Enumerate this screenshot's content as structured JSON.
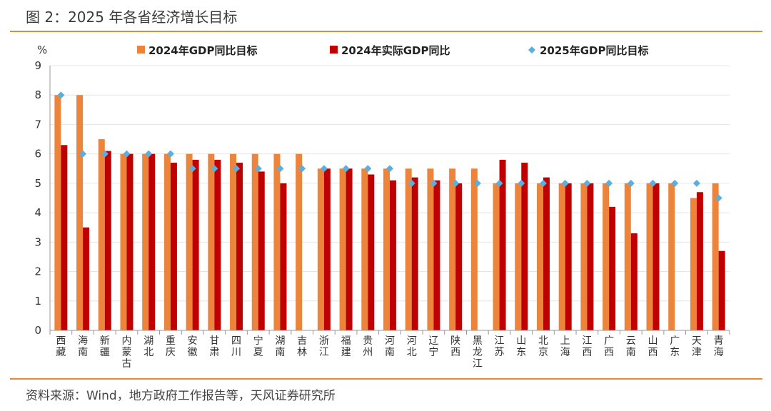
{
  "figure_title": "图 2：2025 年各省经济增长目标",
  "source_note": "资料来源：Wind，地方政府工作报告等，天风证券研究所",
  "chart_data": {
    "type": "bar",
    "title": "",
    "xlabel": "",
    "ylabel": "%",
    "ylim": [
      0,
      9
    ],
    "yticks": [
      "0",
      "1",
      "2",
      "3",
      "4",
      "5",
      "6",
      "7",
      "8",
      "9"
    ],
    "grid": true,
    "legend_position": "top",
    "categories": [
      "西藏",
      "海南",
      "新疆",
      "内蒙古",
      "湖北",
      "重庆",
      "安徽",
      "甘肃",
      "四川",
      "宁夏",
      "湖南",
      "吉林",
      "浙江",
      "福建",
      "贵州",
      "河南",
      "河北",
      "辽宁",
      "陕西",
      "黑龙江",
      "江苏",
      "山东",
      "北京",
      "上海",
      "江西",
      "广西",
      "云南",
      "山西",
      "广东",
      "天津",
      "青海"
    ],
    "series": [
      {
        "name": "2024年GDP同比目标",
        "kind": "bar",
        "color": "#ed843c",
        "values": [
          8,
          8,
          6.5,
          6,
          6,
          6,
          6,
          6,
          6,
          6,
          6,
          6,
          5.5,
          5.5,
          5.5,
          5.5,
          5.5,
          5.5,
          5.5,
          5.5,
          5,
          5,
          5,
          5,
          5,
          5,
          5,
          5,
          5,
          4.5,
          5
        ]
      },
      {
        "name": "2024年实际GDP同比",
        "kind": "bar",
        "color": "#c00000",
        "values": [
          6.3,
          3.5,
          6.1,
          6,
          6,
          5.7,
          5.8,
          5.8,
          5.7,
          5.4,
          5,
          null,
          5.5,
          5.5,
          5.3,
          5.1,
          5.2,
          5.1,
          5,
          null,
          5.8,
          5.7,
          5.2,
          5,
          5,
          4.2,
          3.3,
          5,
          null,
          4.7,
          2.7
        ]
      },
      {
        "name": "2025年GDP同比目标",
        "kind": "marker",
        "color": "#5aaee0",
        "values": [
          8,
          6,
          6,
          6,
          6,
          6,
          5.5,
          5.5,
          5.5,
          5.5,
          5.5,
          5.5,
          5.5,
          5.5,
          5.5,
          5.5,
          5,
          5,
          5,
          5,
          5,
          5,
          5,
          5,
          5,
          5,
          5,
          5,
          5,
          5,
          4.5
        ]
      }
    ]
  }
}
